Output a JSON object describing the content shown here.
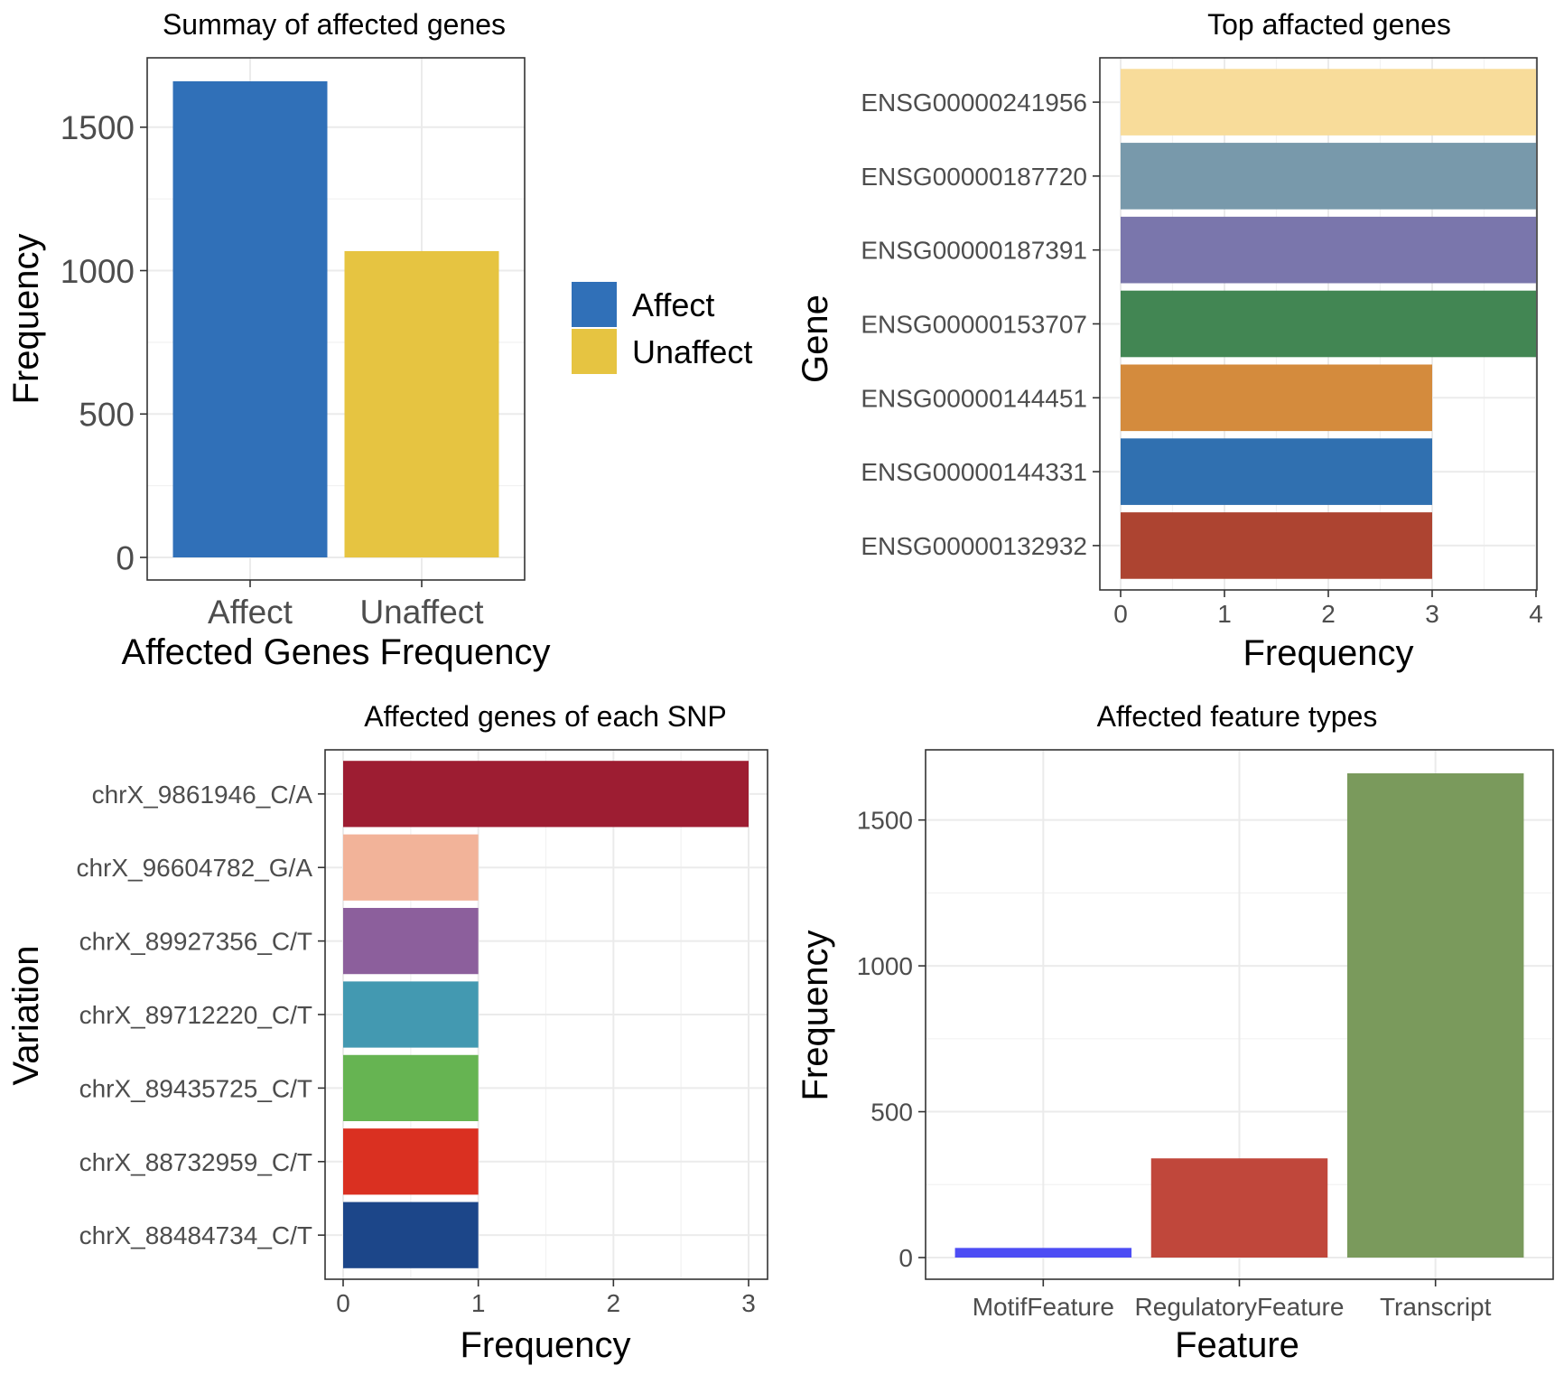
{
  "chart_data": [
    {
      "id": "summary",
      "type": "bar",
      "title": "Summay of affected genes",
      "xlabel": "Affected Genes Frequency",
      "ylabel": "Frequency",
      "categories": [
        "Affect",
        "Unaffect"
      ],
      "values": [
        1660,
        1068
      ],
      "colors": [
        "#3070b8",
        "#e6c441"
      ],
      "ylim": [
        0,
        1660
      ],
      "yticks": [
        0,
        500,
        1000,
        1500
      ],
      "grid": true,
      "legend": {
        "position": "right",
        "entries": [
          {
            "label": "Affect",
            "color": "#3070b8"
          },
          {
            "label": "Unaffect",
            "color": "#e6c441"
          }
        ]
      }
    },
    {
      "id": "top_genes",
      "type": "bar",
      "orientation": "horizontal",
      "title": "Top affacted genes",
      "xlabel": "Frequency",
      "ylabel": "Gene",
      "categories": [
        "ENSG00000241956",
        "ENSG00000187720",
        "ENSG00000187391",
        "ENSG00000153707",
        "ENSG00000144451",
        "ENSG00000144331",
        "ENSG00000132932"
      ],
      "values": [
        4,
        4,
        4,
        4,
        3,
        3,
        3
      ],
      "colors": [
        "#f8dc9a",
        "#7899ab",
        "#7a76ac",
        "#428653",
        "#d48b3d",
        "#3070b0",
        "#ad4431"
      ],
      "xlim": [
        0,
        4
      ],
      "xticks": [
        0,
        1,
        2,
        3,
        4
      ],
      "grid": true
    },
    {
      "id": "snp_genes",
      "type": "bar",
      "orientation": "horizontal",
      "title": "Affected genes of each SNP",
      "xlabel": "Frequency",
      "ylabel": "Variation",
      "categories": [
        "chrX_9861946_C/A",
        "chrX_96604782_G/A",
        "chrX_89927356_C/T",
        "chrX_89712220_C/T",
        "chrX_89435725_C/T",
        "chrX_88732959_C/T",
        "chrX_88484734_C/T"
      ],
      "values": [
        3,
        1,
        1,
        1,
        1,
        1,
        1
      ],
      "colors": [
        "#9d1d32",
        "#f2b399",
        "#8c5f9c",
        "#4399b1",
        "#66b452",
        "#da3021",
        "#1c4689"
      ],
      "xlim": [
        0,
        3
      ],
      "xticks": [
        0,
        1,
        2,
        3
      ],
      "grid": true
    },
    {
      "id": "feature_types",
      "type": "bar",
      "title": "Affected feature types",
      "xlabel": "Feature",
      "ylabel": "Frequency",
      "categories": [
        "MotifFeature",
        "RegulatoryFeature",
        "Transcript"
      ],
      "values": [
        33,
        340,
        1660
      ],
      "colors": [
        "#4d4df4",
        "#c0473b",
        "#7a9a5c"
      ],
      "ylim": [
        0,
        1660
      ],
      "yticks": [
        0,
        500,
        1000,
        1500
      ],
      "grid": true
    }
  ]
}
